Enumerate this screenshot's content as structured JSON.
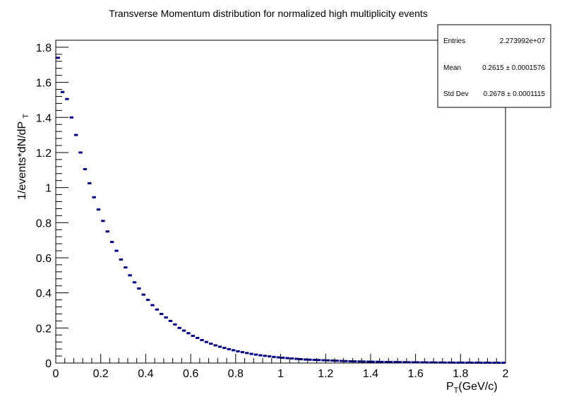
{
  "chart_data": {
    "type": "bar",
    "title": "Transverse Momentum distribution for normalized high multiplicity events",
    "xlabel": {
      "main": "P",
      "sub": "T",
      "rest": "(GeV/c)"
    },
    "ylabel": {
      "main": "1/events*dN/dP",
      "sub": "T"
    },
    "xlim": [
      0,
      2
    ],
    "ylim": [
      0,
      1.84
    ],
    "xticks": [
      "0",
      "0.2",
      "0.4",
      "0.6",
      "0.8",
      "1",
      "1.2",
      "1.4",
      "1.6",
      "1.8",
      "2"
    ],
    "yticks": [
      "0",
      "0.2",
      "0.4",
      "0.6",
      "0.8",
      "1",
      "1.2",
      "1.4",
      "1.6",
      "1.8"
    ],
    "bin_width": 0.02,
    "series": [
      {
        "name": "pT",
        "color": "#000080",
        "x": [
          0.01,
          0.03,
          0.05,
          0.07,
          0.09,
          0.11,
          0.13,
          0.15,
          0.17,
          0.19,
          0.21,
          0.23,
          0.25,
          0.27,
          0.29,
          0.31,
          0.33,
          0.35,
          0.37,
          0.39,
          0.41,
          0.43,
          0.45,
          0.47,
          0.49,
          0.51,
          0.53,
          0.55,
          0.57,
          0.59,
          0.61,
          0.63,
          0.65,
          0.67,
          0.69,
          0.71,
          0.73,
          0.75,
          0.77,
          0.79,
          0.81,
          0.83,
          0.85,
          0.87,
          0.89,
          0.91,
          0.93,
          0.95,
          0.97,
          0.99,
          1.01,
          1.03,
          1.05,
          1.07,
          1.09,
          1.11,
          1.13,
          1.15,
          1.17,
          1.19,
          1.21,
          1.23,
          1.25,
          1.27,
          1.29,
          1.31,
          1.33,
          1.35,
          1.37,
          1.39,
          1.41,
          1.43,
          1.45,
          1.47,
          1.49,
          1.51,
          1.53,
          1.55,
          1.57,
          1.59,
          1.61,
          1.63,
          1.65,
          1.67,
          1.69,
          1.71,
          1.73,
          1.75,
          1.77,
          1.79,
          1.81,
          1.83,
          1.85,
          1.87,
          1.89,
          1.91,
          1.93,
          1.95,
          1.97,
          1.99
        ],
        "values": [
          1.74,
          1.545,
          1.505,
          1.4,
          1.3,
          1.2,
          1.105,
          1.025,
          0.945,
          0.875,
          0.81,
          0.75,
          0.69,
          0.64,
          0.59,
          0.545,
          0.5,
          0.46,
          0.425,
          0.39,
          0.36,
          0.33,
          0.305,
          0.28,
          0.26,
          0.24,
          0.22,
          0.2,
          0.185,
          0.17,
          0.155,
          0.143,
          0.131,
          0.12,
          0.11,
          0.101,
          0.093,
          0.086,
          0.079,
          0.073,
          0.067,
          0.062,
          0.057,
          0.052,
          0.048,
          0.044,
          0.041,
          0.038,
          0.035,
          0.032,
          0.03,
          0.028,
          0.026,
          0.024,
          0.022,
          0.02,
          0.019,
          0.018,
          0.017,
          0.016,
          0.015,
          0.014,
          0.013,
          0.012,
          0.011,
          0.01,
          0.0095,
          0.009,
          0.0085,
          0.008,
          0.0075,
          0.007,
          0.0065,
          0.006,
          0.0057,
          0.0054,
          0.0051,
          0.0048,
          0.0045,
          0.0042,
          0.004,
          0.0038,
          0.0036,
          0.0034,
          0.0032,
          0.003,
          0.0028,
          0.0026,
          0.0025,
          0.0024,
          0.0023,
          0.0022,
          0.0021,
          0.002,
          0.0019,
          0.0018,
          0.0017,
          0.0016,
          0.0015,
          0.0014
        ]
      }
    ],
    "stats_box": {
      "entries_label": "Entries",
      "entries_value": "2.273992e+07",
      "mean_label": "Mean",
      "mean_value": "0.2615 ± 0.0001576",
      "std_label": "Std Dev",
      "std_value": "0.2678 ± 0.0001115"
    }
  }
}
